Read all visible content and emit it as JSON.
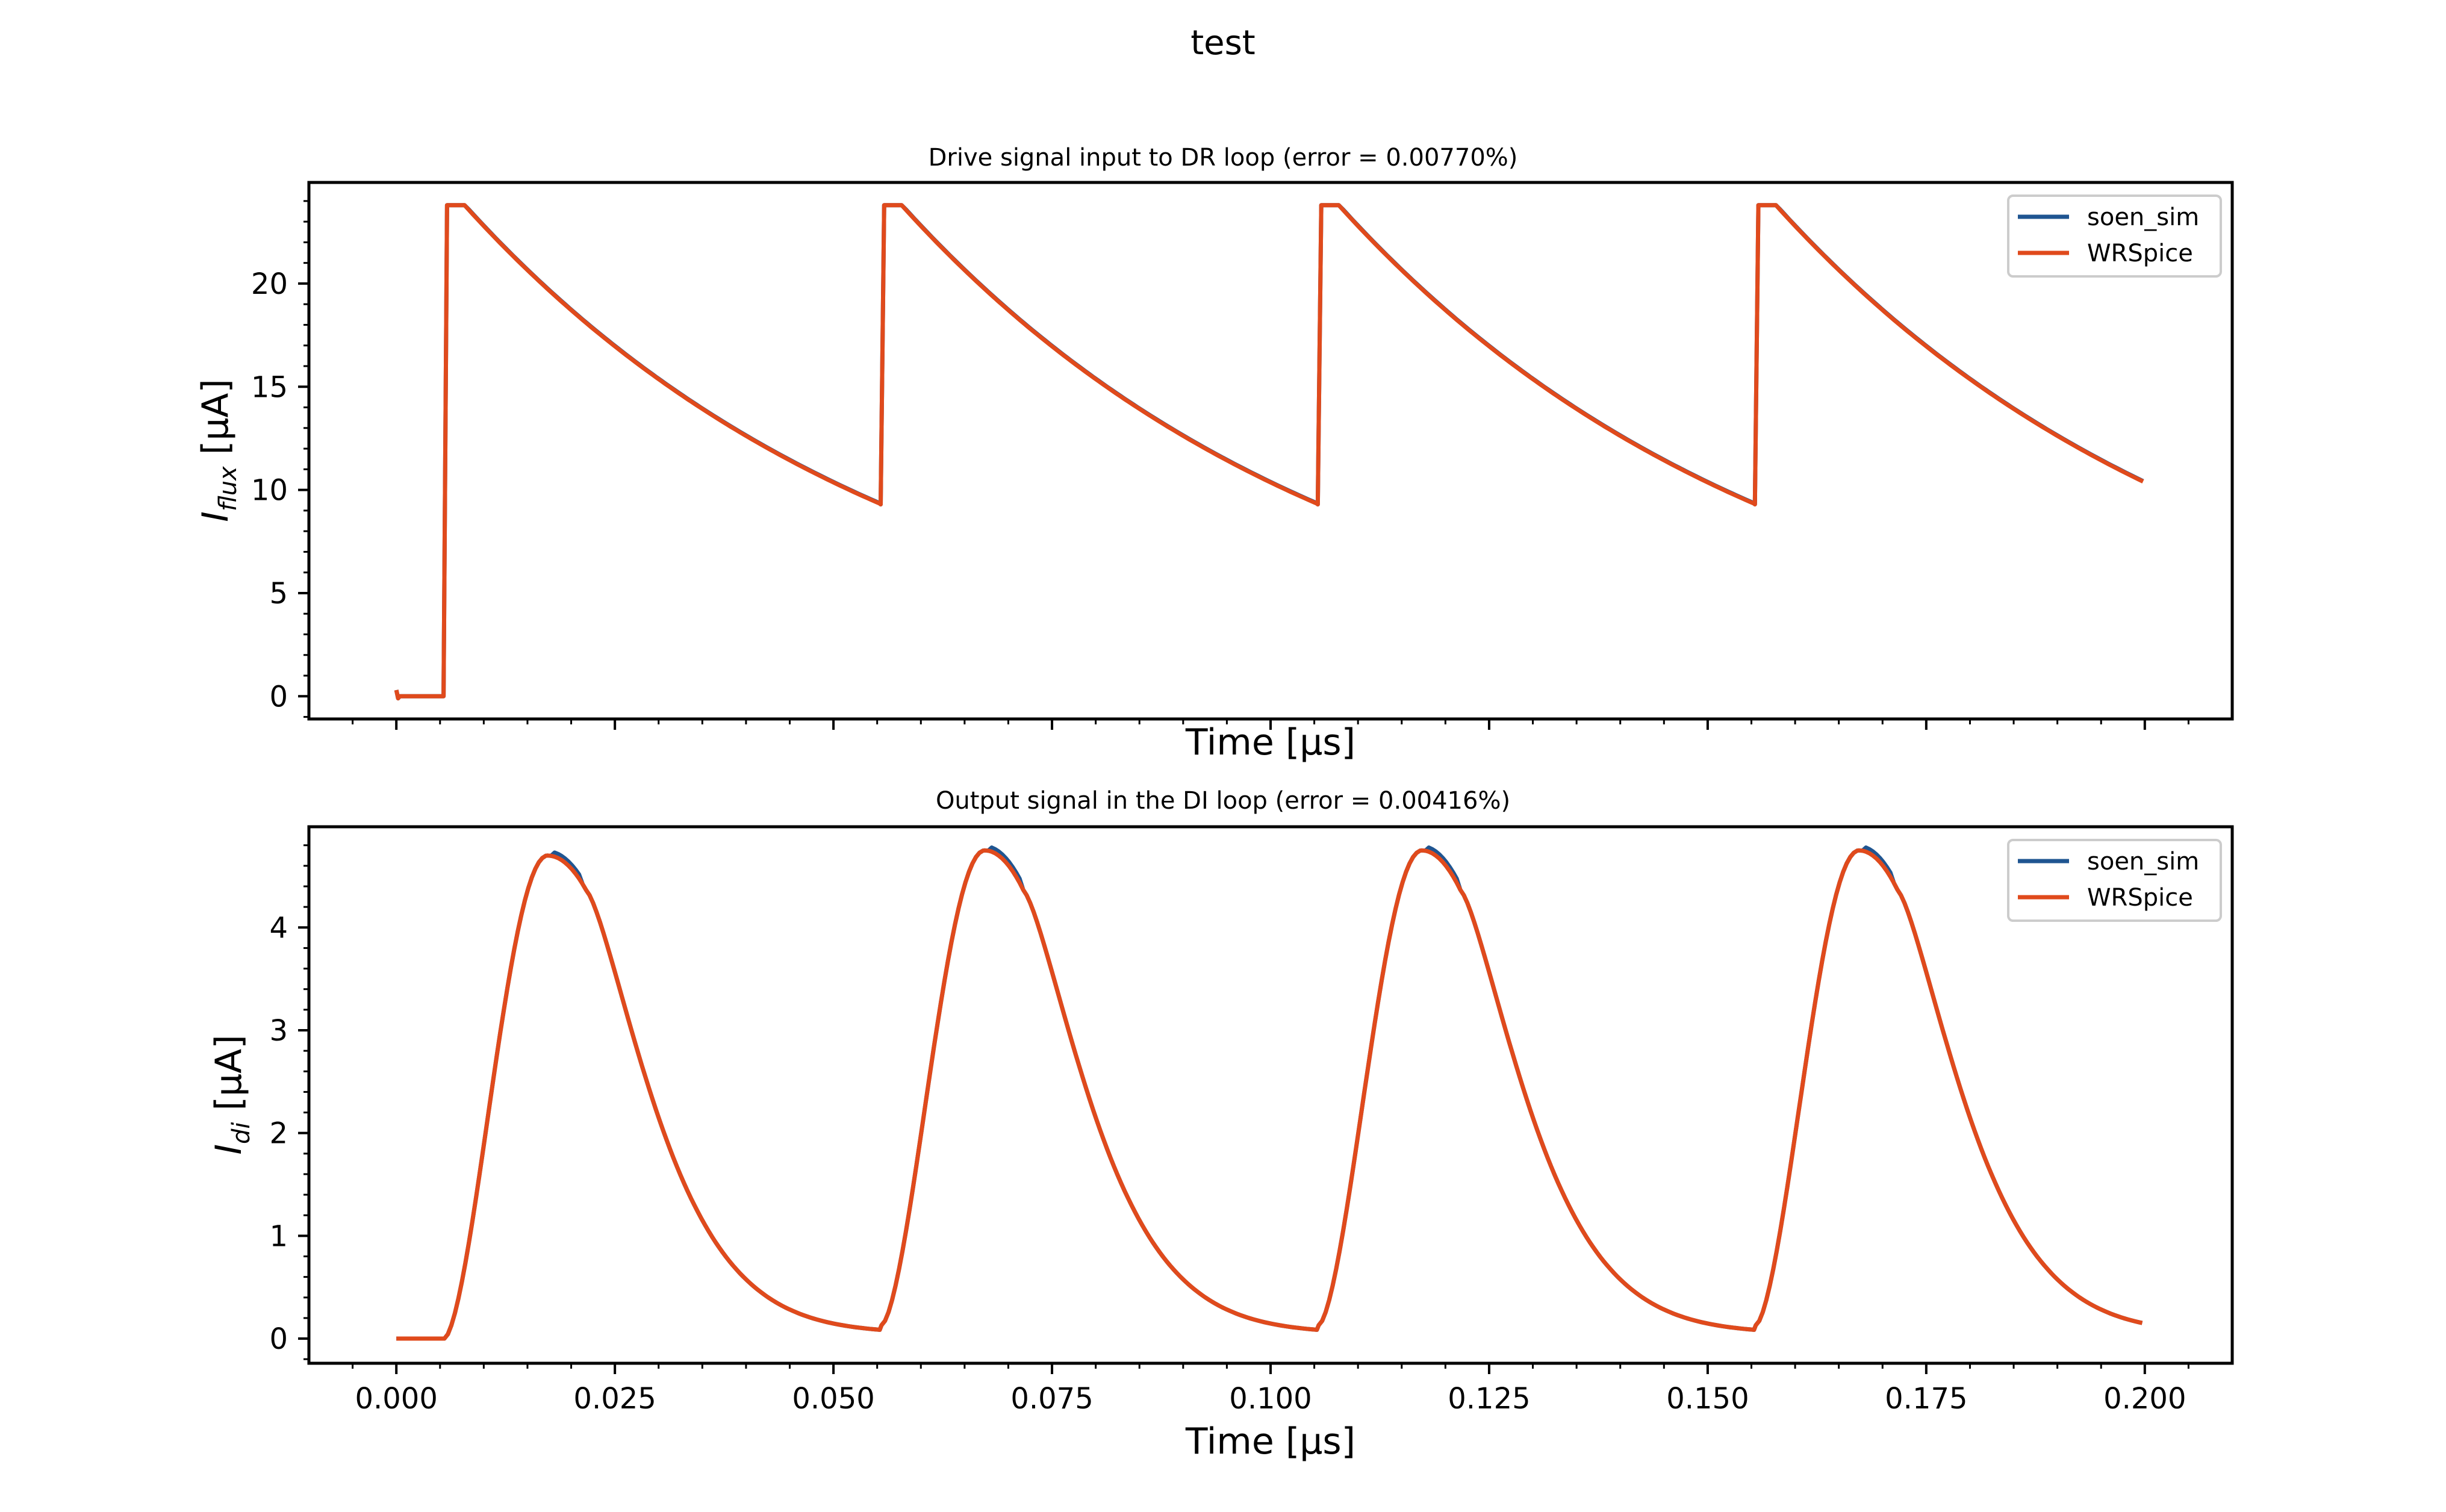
{
  "figure": {
    "suptitle": "test"
  },
  "colors": {
    "soen_sim": "#1f5591",
    "WRSpice": "#e04a1c",
    "axes": "#000000",
    "legend_border": "#cccccc"
  },
  "chart_data": [
    {
      "type": "line",
      "title": "Drive signal input to DR loop (error = 0.00770%)",
      "xlabel": "Time [μs]",
      "ylabel_main": "I",
      "ylabel_sub": "flux",
      "ylabel_unit": " [μA]",
      "xlim": [
        -0.01,
        0.21
      ],
      "ylim": [
        -1.1,
        24.9
      ],
      "xticks": [
        0.0,
        0.025,
        0.05,
        0.075,
        0.1,
        0.125,
        0.15,
        0.175,
        0.2
      ],
      "xtick_labels_visible": false,
      "yticks": [
        0,
        5,
        10,
        15,
        20
      ],
      "ytick_labels": [
        "0",
        "5",
        "10",
        "15",
        "20"
      ],
      "legend_location": "upper right",
      "legend_entries": [
        "soen_sim",
        "WRSpice"
      ],
      "waveform": {
        "period": 0.05,
        "baseline_end": 0.0053,
        "rise_end": 0.0058,
        "flat_end": 0.0078,
        "peak": 23.8,
        "trough": 9.3,
        "final_value": 10.3,
        "t_end": 0.2
      },
      "series": [
        {
          "name": "soen_sim",
          "color": "#1f5591"
        },
        {
          "name": "WRSpice",
          "color": "#e04a1c"
        }
      ]
    },
    {
      "type": "line",
      "title": "Output signal in the DI loop (error = 0.00416%)",
      "xlabel": "Time [μs]",
      "ylabel_main": "I",
      "ylabel_sub": "di",
      "ylabel_unit": " [μA]",
      "xlim": [
        -0.01,
        0.21
      ],
      "ylim": [
        -0.24,
        4.98
      ],
      "xticks": [
        0.0,
        0.025,
        0.05,
        0.075,
        0.1,
        0.125,
        0.15,
        0.175,
        0.2
      ],
      "xtick_labels": [
        "0.000",
        "0.025",
        "0.050",
        "0.075",
        "0.100",
        "0.125",
        "0.150",
        "0.175",
        "0.200"
      ],
      "yticks": [
        0,
        1,
        2,
        3,
        4
      ],
      "ytick_labels": [
        "0",
        "1",
        "2",
        "3",
        "4"
      ],
      "legend_location": "upper right",
      "legend_entries": [
        "soen_sim",
        "WRSpice"
      ],
      "waveform": {
        "period": 0.05,
        "baseline_end": 0.0055,
        "peak_time_offset": 0.0173,
        "peak_first": 4.7,
        "peak_later": 4.75,
        "trough": 0.13,
        "final_value": 0.22,
        "t_end": 0.2
      },
      "series": [
        {
          "name": "soen_sim",
          "color": "#1f5591"
        },
        {
          "name": "WRSpice",
          "color": "#e04a1c"
        }
      ]
    }
  ]
}
